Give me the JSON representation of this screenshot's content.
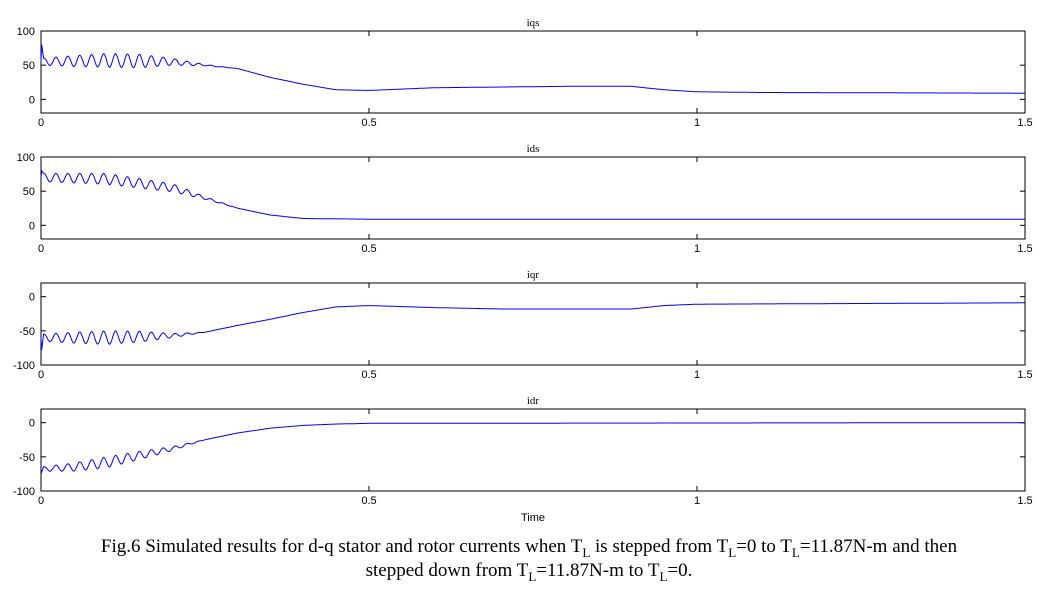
{
  "chart_data": [
    {
      "type": "line",
      "title": "iqs",
      "ylim": [
        -20,
        100
      ],
      "yticks": [
        0,
        50,
        100
      ],
      "ytick_labels": [
        "0",
        "50",
        "100"
      ],
      "xlim": [
        0,
        1.5
      ],
      "xticks": [
        0,
        0.5,
        1,
        1.5
      ],
      "xtick_labels": [
        "0",
        "0.5",
        "1",
        "1.5"
      ],
      "xlabel": "",
      "color": "#0000ff",
      "initial_spike": 80,
      "x": [
        0,
        0.1,
        0.2,
        0.25,
        0.3,
        0.35,
        0.4,
        0.45,
        0.5,
        0.6,
        0.7,
        0.8,
        0.9,
        0.95,
        1.0,
        1.1,
        1.5
      ],
      "trend": [
        55,
        57,
        55,
        50,
        45,
        32,
        22,
        14,
        13,
        17,
        18,
        19,
        19,
        14,
        11,
        10,
        9
      ],
      "osc_x": [
        0,
        0.05,
        0.1,
        0.15,
        0.2,
        0.25,
        0.3
      ],
      "osc_amp": [
        5,
        8,
        10,
        10,
        5,
        1,
        0
      ],
      "osc_freq_hz": 55
    },
    {
      "type": "line",
      "title": "ids",
      "ylim": [
        -20,
        100
      ],
      "yticks": [
        0,
        50,
        100
      ],
      "ytick_labels": [
        "0",
        "50",
        "100"
      ],
      "xlim": [
        0,
        1.5
      ],
      "xticks": [
        0,
        0.5,
        1,
        1.5
      ],
      "xtick_labels": [
        "0",
        "0.5",
        "1",
        "1.5"
      ],
      "xlabel": "",
      "color": "#0000ff",
      "initial_spike": 80,
      "x": [
        0,
        0.1,
        0.2,
        0.25,
        0.3,
        0.35,
        0.4,
        0.5,
        1.5
      ],
      "trend": [
        70,
        68,
        55,
        40,
        25,
        15,
        10,
        9,
        9
      ],
      "osc_x": [
        0,
        0.1,
        0.2,
        0.25,
        0.3
      ],
      "osc_amp": [
        6,
        8,
        6,
        2,
        0
      ],
      "osc_freq_hz": 55
    },
    {
      "type": "line",
      "title": "iqr",
      "ylim": [
        -100,
        20
      ],
      "yticks": [
        -100,
        -50,
        0
      ],
      "ytick_labels": [
        "-100",
        "-50",
        "0"
      ],
      "xlim": [
        0,
        1.5
      ],
      "xticks": [
        0,
        0.5,
        1,
        1.5
      ],
      "xtick_labels": [
        "0",
        "0.5",
        "1",
        "1.5"
      ],
      "xlabel": "",
      "color": "#0000ff",
      "initial_spike": -78,
      "x": [
        0,
        0.1,
        0.2,
        0.25,
        0.3,
        0.35,
        0.4,
        0.45,
        0.5,
        0.6,
        0.7,
        0.9,
        0.95,
        1.0,
        1.5
      ],
      "trend": [
        -60,
        -60,
        -57,
        -52,
        -42,
        -33,
        -23,
        -15,
        -13,
        -16,
        -18,
        -18,
        -13,
        -11,
        -9
      ],
      "osc_x": [
        0,
        0.05,
        0.1,
        0.15,
        0.2,
        0.25
      ],
      "osc_amp": [
        5,
        8,
        10,
        8,
        3,
        0
      ],
      "osc_freq_hz": 55
    },
    {
      "type": "line",
      "title": "idr",
      "ylim": [
        -100,
        20
      ],
      "yticks": [
        -100,
        -50,
        0
      ],
      "ytick_labels": [
        "-100",
        "-50",
        "0"
      ],
      "xlim": [
        0,
        1.5
      ],
      "xticks": [
        0,
        0.5,
        1,
        1.5
      ],
      "xtick_labels": [
        "0",
        "0.5",
        "1",
        "1.5"
      ],
      "xlabel": "Time",
      "color": "#0000ff",
      "initial_spike": -72,
      "x": [
        0,
        0.05,
        0.1,
        0.15,
        0.2,
        0.25,
        0.3,
        0.35,
        0.4,
        0.45,
        0.5,
        1.5
      ],
      "trend": [
        -68,
        -65,
        -58,
        -48,
        -38,
        -25,
        -15,
        -8,
        -4,
        -2,
        -1,
        0
      ],
      "osc_x": [
        0,
        0.05,
        0.1,
        0.15,
        0.2,
        0.25
      ],
      "osc_amp": [
        3,
        6,
        8,
        6,
        3,
        0
      ],
      "osc_freq_hz": 55
    }
  ],
  "caption": {
    "p1": "Fig.6 Simulated results for d-q stator and rotor currents when T",
    "s1": "L",
    "p2": " is stepped from T",
    "s2": "L",
    "p3": "=0 to T",
    "s3": "L",
    "p4": "=11.87N-m and then",
    "p5": "stepped down from T",
    "s5": "L",
    "p6": "=11.87N-m to T",
    "s6": "L",
    "p7": "=0."
  }
}
